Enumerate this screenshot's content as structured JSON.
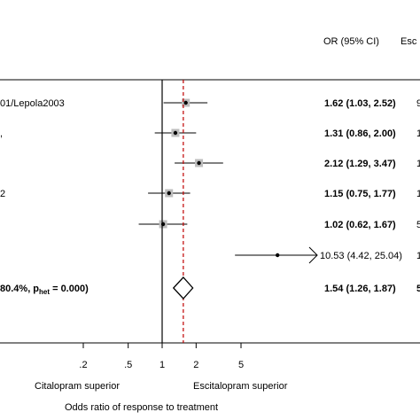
{
  "header": {
    "or_col": "OR (95% CI)",
    "weight_col": "Esc"
  },
  "chart_data": {
    "type": "forest",
    "x_scale": "log",
    "xlim": [
      0.08,
      14
    ],
    "null_line": 1,
    "pooled_line": 1.54,
    "xticks": [
      {
        "value": 0.2,
        "label": ".2"
      },
      {
        "value": 0.5,
        "label": ".5"
      },
      {
        "value": 1,
        "label": "1"
      },
      {
        "value": 2,
        "label": "2"
      },
      {
        "value": 5,
        "label": "5"
      }
    ],
    "xlabel": "Odds ratio of response to treatment",
    "left_annotation": "Citalopram superior",
    "right_annotation": "Escitalopram superior",
    "studies": [
      {
        "label": "01/Lepola2003",
        "or": 1.62,
        "lo": 1.03,
        "hi": 2.52,
        "ci_text": "1.62 (1.03, 2.52)",
        "extra": "9",
        "box_w": 1.0
      },
      {
        "label": ",",
        "or": 1.31,
        "lo": 0.86,
        "hi": 2.0,
        "ci_text": "1.31 (0.86, 2.00)",
        "extra": "1",
        "box_w": 1.0
      },
      {
        "label": "",
        "or": 2.12,
        "lo": 1.29,
        "hi": 3.47,
        "ci_text": "2.12 (1.29, 3.47)",
        "extra": "1",
        "box_w": 1.0
      },
      {
        "label": "2",
        "or": 1.15,
        "lo": 0.75,
        "hi": 1.77,
        "ci_text": "1.15 (0.75, 1.77)",
        "extra": "1",
        "box_w": 1.0
      },
      {
        "label": "",
        "or": 1.02,
        "lo": 0.62,
        "hi": 1.67,
        "ci_text": "1.02 (0.62, 1.67)",
        "extra": "5",
        "box_w": 1.0
      },
      {
        "label": "",
        "or": 10.53,
        "lo": 4.42,
        "hi": 25.04,
        "ci_text": "10.53 (4.42, 25.04)",
        "extra": "1",
        "box_w": 0,
        "arrow_right": true
      }
    ],
    "overall": {
      "label_prefix": "80.4%, p",
      "label_sub": "het",
      "label_suffix": " = 0.000)",
      "or": 1.54,
      "lo": 1.26,
      "hi": 1.87,
      "ci_text": "1.54 (1.26, 1.87)",
      "extra": "5"
    }
  }
}
